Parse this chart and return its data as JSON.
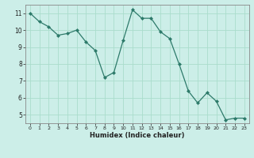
{
  "x": [
    0,
    1,
    2,
    3,
    4,
    5,
    6,
    7,
    8,
    9,
    10,
    11,
    12,
    13,
    14,
    15,
    16,
    17,
    18,
    19,
    20,
    21,
    22,
    23
  ],
  "y": [
    11.0,
    10.5,
    10.2,
    9.7,
    9.8,
    10.0,
    9.3,
    8.8,
    7.2,
    7.5,
    9.4,
    11.2,
    10.7,
    10.7,
    9.9,
    9.5,
    8.0,
    6.4,
    5.7,
    6.3,
    5.8,
    4.7,
    4.8,
    4.8
  ],
  "line_color": "#2d7a6a",
  "marker": "D",
  "marker_size": 2.0,
  "bg_color": "#cceee8",
  "grid_color": "#aaddcc",
  "xlabel": "Humidex (Indice chaleur)",
  "ylim": [
    4.5,
    11.5
  ],
  "xlim": [
    -0.5,
    23.5
  ],
  "yticks": [
    5,
    6,
    7,
    8,
    9,
    10,
    11
  ],
  "xticks": [
    0,
    1,
    2,
    3,
    4,
    5,
    6,
    7,
    8,
    9,
    10,
    11,
    12,
    13,
    14,
    15,
    16,
    17,
    18,
    19,
    20,
    21,
    22,
    23
  ]
}
